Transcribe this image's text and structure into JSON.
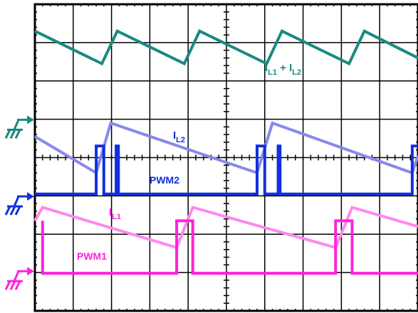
{
  "chart_data": {
    "type": "line",
    "title": "",
    "xlabel": "",
    "ylabel": "",
    "grid": true,
    "x_divisions": 10,
    "y_divisions": 8,
    "xlim": [
      0,
      10
    ],
    "ylim": [
      0,
      8
    ],
    "colors": {
      "sum": "#1a8a80",
      "il2": "#8888ee",
      "pwm2": "#1030e0",
      "il1": "#ff88ee",
      "pwm1": "#ff22dd"
    },
    "ground_markers": [
      {
        "name": "ground-marker-ch1",
        "color": "#1a8a80",
        "level": 4.8
      },
      {
        "name": "ground-marker-ch2",
        "color": "#1030e0",
        "level": 2.8
      },
      {
        "name": "ground-marker-ch3",
        "color": "#ff22dd",
        "level": 0.85
      }
    ],
    "labels": {
      "sum": {
        "main1": "I",
        "sub1": "L1",
        "mid": " + ",
        "main2": "I",
        "sub2": "L2"
      },
      "il2": {
        "main": "I",
        "sub": "L2"
      },
      "pwm2": {
        "text": "PWM2"
      },
      "il1": {
        "main": "I",
        "sub": "L1"
      },
      "pwm1": {
        "text": "PWM1"
      }
    },
    "series": [
      {
        "key": "sum",
        "points": [
          [
            0,
            7.3
          ],
          [
            1.75,
            6.45
          ],
          [
            2.15,
            7.3
          ],
          [
            3.9,
            6.45
          ],
          [
            4.3,
            7.3
          ],
          [
            6.05,
            6.45
          ],
          [
            6.45,
            7.3
          ],
          [
            8.2,
            6.45
          ],
          [
            8.6,
            7.3
          ],
          [
            10,
            6.6
          ]
        ]
      },
      {
        "key": "il2",
        "points": [
          [
            0,
            4.55
          ],
          [
            1.6,
            3.6
          ],
          [
            1.98,
            4.9
          ],
          [
            5.8,
            3.6
          ],
          [
            6.2,
            4.9
          ],
          [
            9.85,
            3.6
          ],
          [
            10,
            4.05
          ]
        ]
      },
      {
        "key": "pwm2",
        "points": [
          [
            0,
            3.05
          ],
          [
            1.6,
            3.05
          ],
          [
            1.6,
            4.3
          ],
          [
            1.8,
            4.3
          ],
          [
            1.8,
            3.05
          ],
          [
            2.12,
            3.05
          ],
          [
            2.12,
            4.3
          ],
          [
            2.18,
            4.3
          ],
          [
            2.18,
            3.05
          ],
          [
            5.8,
            3.05
          ],
          [
            5.8,
            4.3
          ],
          [
            6.0,
            4.3
          ],
          [
            6.0,
            3.05
          ],
          [
            6.35,
            3.05
          ],
          [
            6.35,
            4.3
          ],
          [
            6.4,
            4.3
          ],
          [
            6.4,
            3.05
          ],
          [
            9.85,
            3.05
          ],
          [
            9.85,
            4.3
          ],
          [
            10,
            4.3
          ]
        ]
      },
      {
        "key": "il1",
        "points": [
          [
            0,
            2.35
          ],
          [
            0.2,
            2.7
          ],
          [
            3.7,
            1.65
          ],
          [
            4.12,
            2.7
          ],
          [
            7.85,
            1.65
          ],
          [
            8.28,
            2.7
          ],
          [
            10,
            2.2
          ]
        ]
      },
      {
        "key": "pwm1",
        "points": [
          [
            0.2,
            2.35
          ],
          [
            0.2,
            0.98
          ],
          [
            3.7,
            0.98
          ],
          [
            3.7,
            2.35
          ],
          [
            4.12,
            2.35
          ],
          [
            4.12,
            0.98
          ],
          [
            7.85,
            0.98
          ],
          [
            7.85,
            2.35
          ],
          [
            8.28,
            2.35
          ],
          [
            8.28,
            0.98
          ],
          [
            10,
            0.98
          ]
        ]
      }
    ]
  }
}
